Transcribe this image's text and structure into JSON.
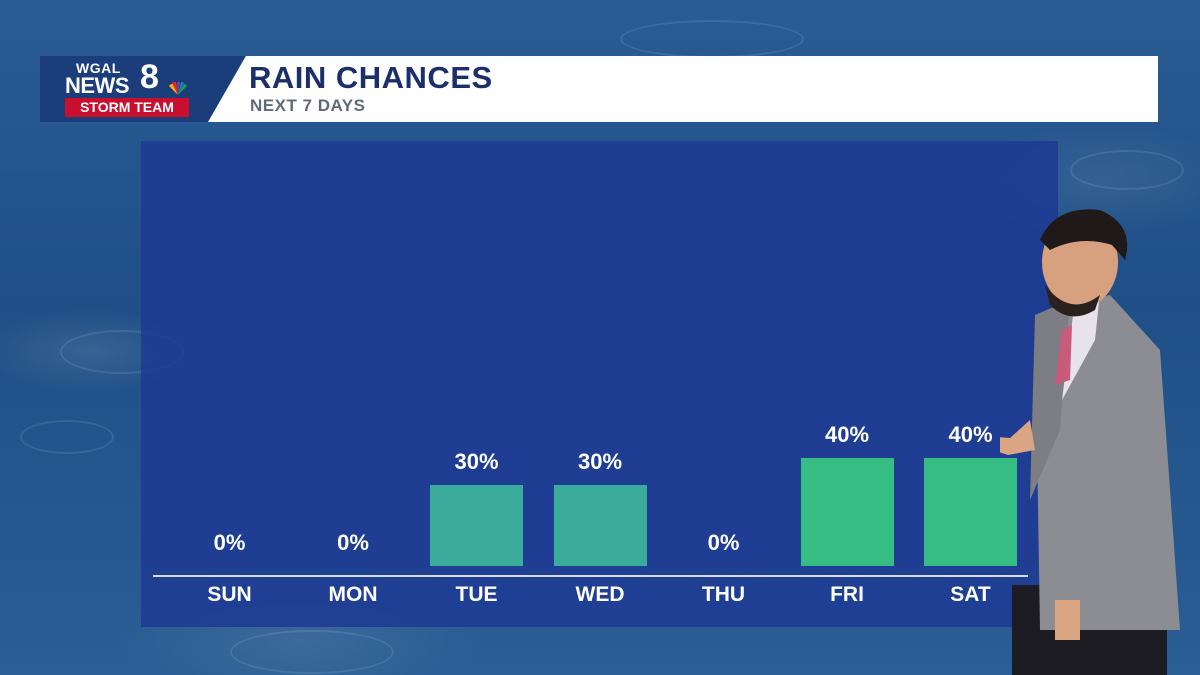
{
  "header": {
    "logo_line1": "WGAL",
    "logo_line2": "NEWS",
    "logo_number": "8",
    "logo_team": "STORM TEAM",
    "title": "RAIN CHANCES",
    "subtitle": "NEXT 7 DAYS"
  },
  "colors": {
    "bar_low": "#3bab9b",
    "bar_high": "#36bd84",
    "panel": "#1e3a94",
    "title": "#1b2f6a"
  },
  "chart_data": {
    "type": "bar",
    "title": "RAIN CHANCES",
    "subtitle": "NEXT 7 DAYS",
    "categories": [
      "SUN",
      "MON",
      "TUE",
      "WED",
      "THU",
      "FRI",
      "SAT"
    ],
    "values": [
      0,
      0,
      30,
      30,
      0,
      40,
      40
    ],
    "value_labels": [
      "0%",
      "0%",
      "30%",
      "30%",
      "0%",
      "40%",
      "40%"
    ],
    "unit": "%",
    "ylim": [
      0,
      100
    ],
    "grid": false,
    "legend": "none"
  }
}
